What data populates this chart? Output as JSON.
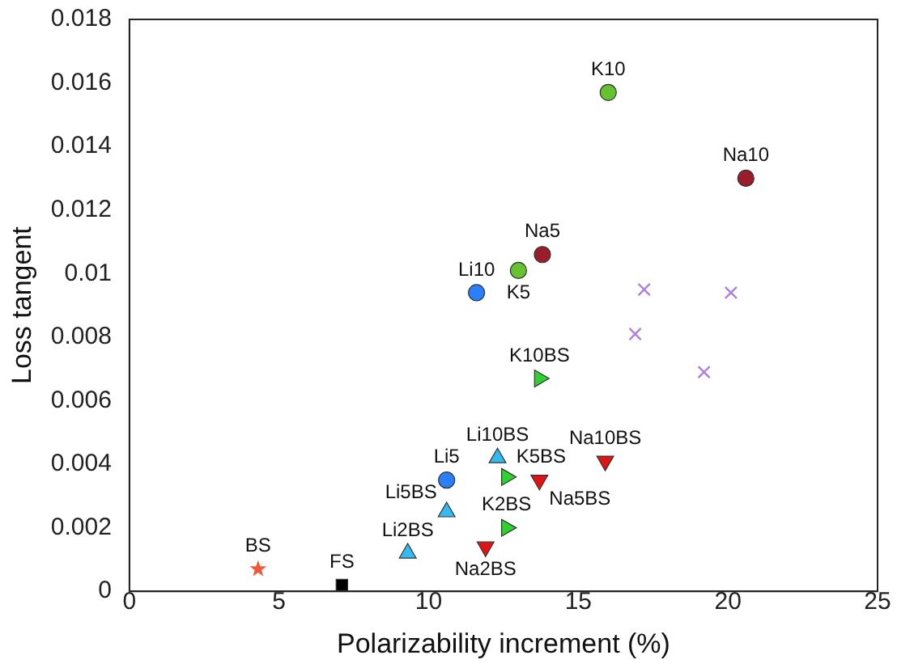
{
  "chart_data": {
    "type": "scatter",
    "xlabel": "Polarizability increment (%)",
    "ylabel": "Loss tangent",
    "xlim": [
      0,
      25
    ],
    "xticks": [
      0,
      5,
      10,
      15,
      20,
      25
    ],
    "ylim": [
      0,
      0.018
    ],
    "yticks": [
      0,
      0.002,
      0.004,
      0.006,
      0.008,
      0.01,
      0.012,
      0.014,
      0.016,
      0.018
    ],
    "grid": false,
    "legend": false,
    "series": [
      {
        "color": "#f0583c",
        "marker": "star",
        "x": [
          4.3
        ],
        "values": [
          0.0007
        ]
      },
      {
        "color": "#000000",
        "marker": "square",
        "x": [
          7.1
        ],
        "values": [
          0.0002
        ]
      },
      {
        "color": "#33bbf0",
        "marker": "triangle",
        "x": [
          9.3,
          10.6,
          12.3
        ],
        "values": [
          0.0012,
          0.0025,
          0.0042
        ]
      },
      {
        "color": "#2a7fff",
        "marker": "circle",
        "x": [
          10.6,
          11.6
        ],
        "values": [
          0.0035,
          0.0094
        ]
      },
      {
        "color": "#66c22e",
        "marker": "circle",
        "x": [
          13.0,
          16.0
        ],
        "values": [
          0.0101,
          0.0157
        ]
      },
      {
        "color": "#9b1c2a",
        "marker": "circle",
        "x": [
          13.8,
          20.6
        ],
        "values": [
          0.0106,
          0.013
        ]
      },
      {
        "color": "#2ed12e",
        "marker": "triangle-right",
        "x": [
          12.6,
          12.6,
          13.7
        ],
        "values": [
          0.002,
          0.0036,
          0.0067
        ]
      },
      {
        "color": "#e01414",
        "marker": "triangle-down",
        "x": [
          11.9,
          13.7,
          15.9
        ],
        "values": [
          0.0014,
          0.0035,
          0.0041
        ]
      },
      {
        "color": "#b07fe0",
        "marker": "cross",
        "x": [
          17.2,
          16.9,
          20.1,
          19.2
        ],
        "values": [
          0.0095,
          0.0081,
          0.0094,
          0.0069
        ]
      }
    ],
    "annotations": [
      {
        "text": "BS",
        "x": 4.3,
        "y": 0.0007
      },
      {
        "text": "FS",
        "x": 7.1,
        "y": 0.0002
      },
      {
        "text": "Li2BS",
        "x": 9.3,
        "y": 0.0012
      },
      {
        "text": "Li5BS",
        "x": 10.6,
        "y": 0.0025
      },
      {
        "text": "Li10BS",
        "x": 12.3,
        "y": 0.0042
      },
      {
        "text": "Li5",
        "x": 10.6,
        "y": 0.0035
      },
      {
        "text": "Li10",
        "x": 11.6,
        "y": 0.0094
      },
      {
        "text": "K5",
        "x": 13.0,
        "y": 0.0101
      },
      {
        "text": "K10",
        "x": 16.0,
        "y": 0.0157
      },
      {
        "text": "Na5",
        "x": 13.8,
        "y": 0.0106
      },
      {
        "text": "Na10",
        "x": 20.6,
        "y": 0.013
      },
      {
        "text": "K2BS",
        "x": 12.6,
        "y": 0.002
      },
      {
        "text": "K5BS",
        "x": 12.6,
        "y": 0.0036
      },
      {
        "text": "K10BS",
        "x": 13.7,
        "y": 0.0067
      },
      {
        "text": "Na2BS",
        "x": 11.9,
        "y": 0.0014
      },
      {
        "text": "Na5BS",
        "x": 13.7,
        "y": 0.0035
      },
      {
        "text": "Na10BS",
        "x": 15.9,
        "y": 0.0041
      }
    ]
  }
}
